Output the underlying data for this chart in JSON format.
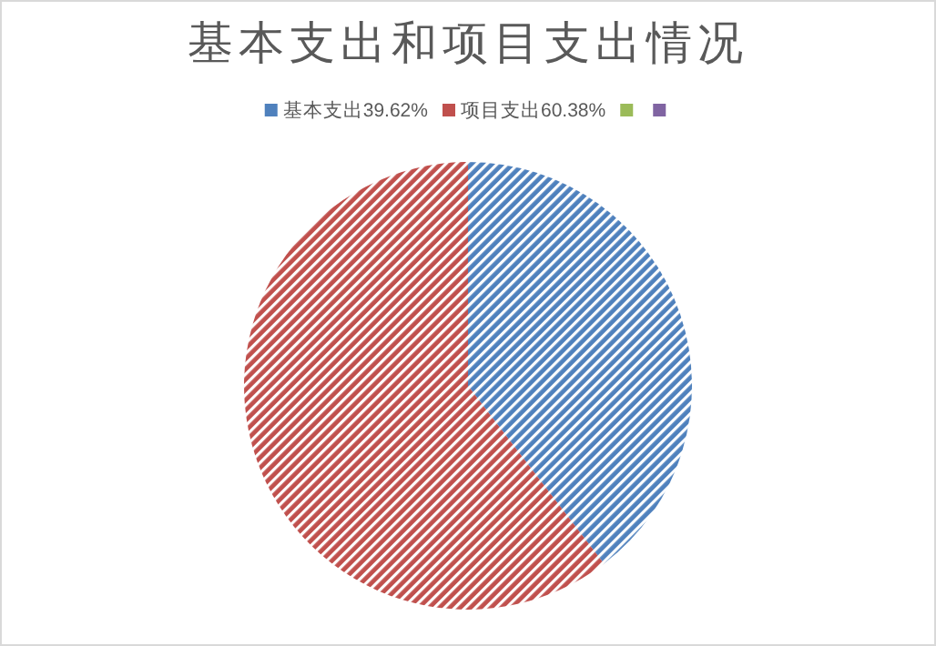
{
  "chart_data": {
    "type": "pie",
    "title": "基本支出和项目支出情况",
    "categories": [
      "基本支出39.62%",
      "项目支出60.38%",
      null,
      null
    ],
    "values": [
      39.62,
      60.38,
      0,
      0
    ],
    "colors": [
      "#4f81bd",
      "#c0504d",
      "#9bbb59",
      "#8064a2"
    ],
    "legend": "top"
  }
}
